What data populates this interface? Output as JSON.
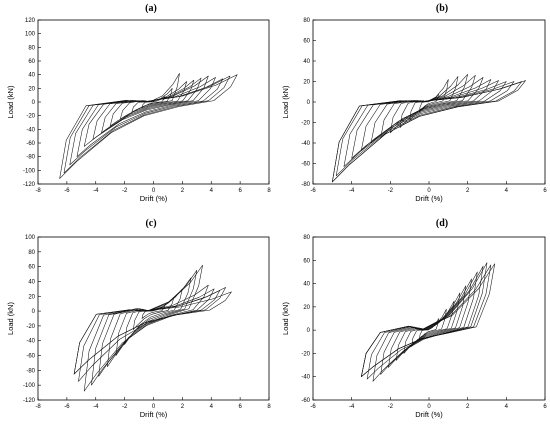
{
  "chart_data": [
    {
      "type": "line",
      "title": "(a)",
      "xlabel": "Drift  (%)",
      "ylabel": "Load (kN)",
      "xlim": [
        -8,
        8
      ],
      "ylim": [
        -120,
        120
      ],
      "xticks": [
        -8,
        -6,
        -4,
        -2,
        0,
        2,
        4,
        6,
        8
      ],
      "yticks": [
        -120,
        -100,
        -80,
        -60,
        -40,
        -20,
        0,
        20,
        40,
        60,
        80,
        100,
        120
      ],
      "grid": false,
      "hysteresis": {
        "pos_drifts": [
          0.8,
          1.3,
          1.8,
          2.3,
          2.8,
          3.3,
          3.8,
          4.3,
          4.8,
          5.3,
          5.8
        ],
        "pos_peaks": [
          8,
          20,
          42,
          30,
          32,
          35,
          38,
          36,
          34,
          38,
          40
        ],
        "neg_drifts": [
          -0.8,
          -1.5,
          -2.3,
          -3.0,
          -3.6,
          -4.2,
          -4.8,
          -5.3,
          -5.8,
          -6.2,
          -6.5
        ],
        "neg_peaks": [
          -8,
          -15,
          -25,
          -35,
          -45,
          -55,
          -65,
          -80,
          -92,
          -104,
          -112
        ]
      }
    },
    {
      "type": "line",
      "title": "(b)",
      "xlabel": "Drift  (%)",
      "ylabel": "Load (kN)",
      "xlim": [
        -6,
        6
      ],
      "ylim": [
        -80,
        80
      ],
      "xticks": [
        -6,
        -4,
        -2,
        0,
        2,
        4,
        6
      ],
      "yticks": [
        -80,
        -60,
        -40,
        -20,
        0,
        20,
        40,
        60,
        80
      ],
      "grid": false,
      "hysteresis": {
        "pos_drifts": [
          0.5,
          1.0,
          1.5,
          2.0,
          2.4,
          2.8,
          3.2,
          3.6,
          4.0,
          4.4,
          4.8,
          5.0
        ],
        "pos_peaks": [
          8,
          22,
          25,
          27,
          26,
          24,
          22,
          21,
          20,
          20,
          20,
          21
        ],
        "neg_drifts": [
          -0.5,
          -1.0,
          -1.5,
          -2.0,
          -2.5,
          -3.0,
          -3.5,
          -4.0,
          -4.4,
          -4.8,
          -5.0
        ],
        "neg_peaks": [
          -10,
          -18,
          -25,
          -30,
          -35,
          -40,
          -47,
          -55,
          -63,
          -72,
          -78
        ]
      }
    },
    {
      "type": "line",
      "title": "(c)",
      "xlabel": "Drift  (%)",
      "ylabel": "Load (kN)",
      "xlim": [
        -8,
        8
      ],
      "ylim": [
        -120,
        100
      ],
      "xticks": [
        -8,
        -6,
        -4,
        -2,
        0,
        2,
        4,
        6,
        8
      ],
      "yticks": [
        -120,
        -100,
        -80,
        -60,
        -40,
        -20,
        0,
        20,
        40,
        60,
        80,
        100
      ],
      "grid": false,
      "hysteresis": {
        "pos_drifts": [
          0.8,
          1.4,
          2.0,
          2.6,
          3.0,
          3.4,
          3.8,
          4.2,
          4.6,
          5.0,
          5.4
        ],
        "pos_peaks": [
          8,
          18,
          30,
          45,
          55,
          62,
          35,
          30,
          28,
          32,
          26
        ],
        "neg_drifts": [
          -0.8,
          -1.4,
          -2.0,
          -2.6,
          -3.2,
          -3.8,
          -4.3,
          -4.8,
          -5.2,
          -5.5
        ],
        "neg_peaks": [
          -10,
          -25,
          -45,
          -60,
          -75,
          -88,
          -100,
          -108,
          -95,
          -85
        ]
      }
    },
    {
      "type": "line",
      "title": "(d)",
      "xlabel": "Drift  (%)",
      "ylabel": "Load (kN)",
      "xlim": [
        -6,
        6
      ],
      "ylim": [
        -60,
        80
      ],
      "xticks": [
        -6,
        -4,
        -2,
        0,
        2,
        4,
        6
      ],
      "yticks": [
        -60,
        -40,
        -20,
        0,
        20,
        40,
        60,
        80
      ],
      "grid": false,
      "hysteresis": {
        "pos_drifts": [
          0.5,
          0.9,
          1.3,
          1.6,
          1.9,
          2.2,
          2.5,
          2.8,
          3.0,
          3.2,
          3.4
        ],
        "pos_peaks": [
          10,
          18,
          25,
          32,
          38,
          44,
          50,
          55,
          58,
          56,
          57
        ],
        "neg_drifts": [
          -0.5,
          -0.9,
          -1.3,
          -1.7,
          -2.1,
          -2.5,
          -2.9,
          -3.2,
          -3.5
        ],
        "neg_peaks": [
          -8,
          -14,
          -20,
          -26,
          -32,
          -38,
          -44,
          -42,
          -40
        ]
      }
    }
  ]
}
